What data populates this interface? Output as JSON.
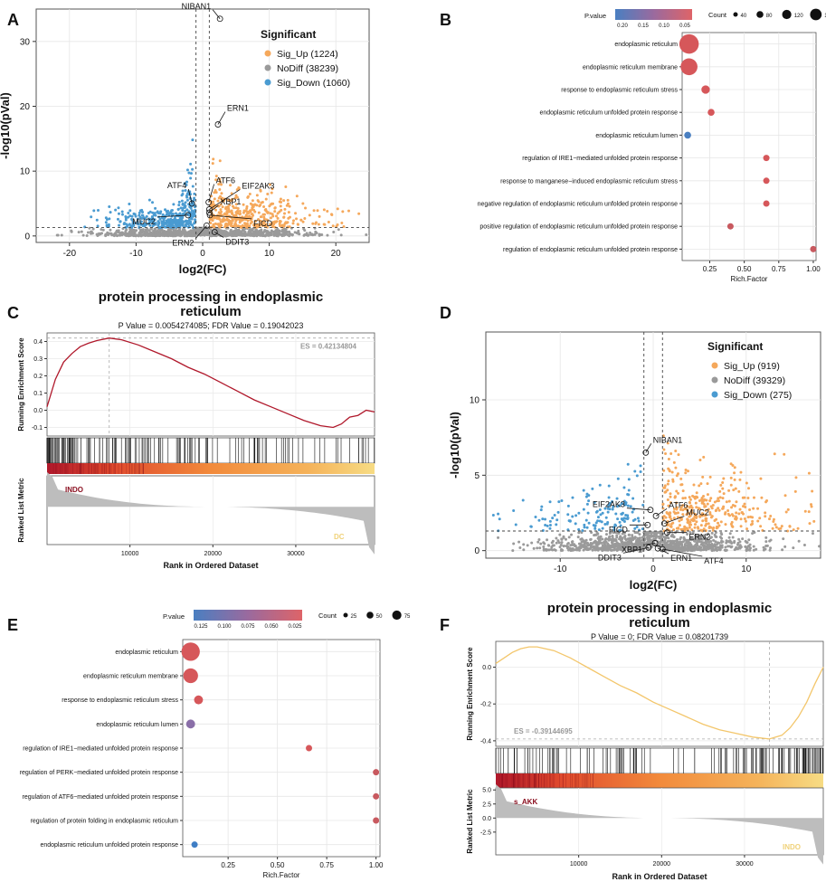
{
  "panels": {
    "A": {
      "letter": "A",
      "type": "volcano",
      "xlabel": "log2(FC)",
      "ylabel": "-log10(pVal)",
      "xlim": [
        -25,
        25
      ],
      "ylim": [
        -1,
        35
      ],
      "xticks": [
        -20,
        -10,
        0,
        10,
        20
      ],
      "yticks": [
        0,
        10,
        20,
        30
      ],
      "vlines": [
        -1,
        1
      ],
      "hline": 1.3,
      "legend": {
        "title": "Significant",
        "items": [
          {
            "label": "Sig_Up (1224)",
            "color": "#F5A85B"
          },
          {
            "label": "NoDiff (38239)",
            "color": "#9A9A9A"
          },
          {
            "label": "Sig_Down (1060)",
            "color": "#4A9BD1"
          }
        ]
      },
      "labels": [
        {
          "gene": "NIBAN1",
          "x": 2.6,
          "y": 33.5
        },
        {
          "gene": "ERN1",
          "x": 2.3,
          "y": 17.2
        },
        {
          "gene": "ATF6",
          "x": 0.9,
          "y": 5.2
        },
        {
          "gene": "EIF2AK3",
          "x": 1.0,
          "y": 4.1
        },
        {
          "gene": "ATF4",
          "x": -1.6,
          "y": 5.0
        },
        {
          "gene": "XBP1",
          "x": 1.0,
          "y": 3.6
        },
        {
          "gene": "MUC2",
          "x": -2.2,
          "y": 3.2
        },
        {
          "gene": "FICD",
          "x": 1.1,
          "y": 3.2
        },
        {
          "gene": "ERN2",
          "x": 0.6,
          "y": 1.6
        },
        {
          "gene": "DDIT3",
          "x": 1.8,
          "y": 0.6
        }
      ]
    },
    "B": {
      "letter": "B",
      "type": "dot",
      "xlabel": "Rich.Factor",
      "xlim": [
        0.05,
        1.02
      ],
      "xticks": [
        0.25,
        0.5,
        0.75,
        1.0
      ],
      "xtick_labels": [
        "0.25",
        "0.50",
        "0.75",
        "1.00"
      ],
      "pvalue_title": "P.value",
      "pvalue_ticks": [
        "0.20",
        "0.15",
        "0.10",
        "0.05"
      ],
      "count_title": "Count",
      "count_ticks": [
        "40",
        "80",
        "120",
        "160"
      ],
      "terms": [
        {
          "term": "endoplasmic reticulum",
          "rich": 0.1,
          "count": 160,
          "color": "#D6575A"
        },
        {
          "term": "endoplasmic reticulum membrane",
          "rich": 0.1,
          "count": 120,
          "color": "#D6575A"
        },
        {
          "term": "response to endoplasmic reticulum stress",
          "rich": 0.22,
          "count": 30,
          "color": "#D6575A"
        },
        {
          "term": "endoplasmic reticulum unfolded protein response",
          "rich": 0.26,
          "count": 20,
          "color": "#D6575A"
        },
        {
          "term": "endoplasmic reticulum lumen",
          "rich": 0.09,
          "count": 20,
          "color": "#4A7FC1"
        },
        {
          "term": "regulation of IRE1−mediated unfolded protein response",
          "rich": 0.66,
          "count": 4,
          "color": "#D6575A"
        },
        {
          "term": "response to manganese−induced endoplasmic reticulum stress",
          "rich": 0.66,
          "count": 4,
          "color": "#D6575A"
        },
        {
          "term": "negative regulation of endoplasmic reticulum unfolded protein response",
          "rich": 0.66,
          "count": 4,
          "color": "#D6575A"
        },
        {
          "term": "positive regulation of endoplasmic reticulum unfolded protein response",
          "rich": 0.4,
          "count": 4,
          "color": "#C8595F"
        },
        {
          "term": "regulation of endoplasmic reticulum unfolded protein response",
          "rich": 1.0,
          "count": 4,
          "color": "#C8595F"
        }
      ]
    },
    "C": {
      "letter": "C",
      "type": "gsea",
      "title": "protein processing in endoplasmic reticulum",
      "subtitle": "P Value = 0.0054274085; FDR Value = 0.19042023",
      "es_label": "ES = 0.42134804",
      "ylabel_top": "Running Enrichment Score",
      "ylabel_bottom": "Ranked List Metric",
      "xlabel": "Rank in Ordered Dataset",
      "xticks": [
        10000,
        20000,
        30000
      ],
      "yticks": [
        -0.1,
        0.0,
        0.1,
        0.2,
        0.3,
        0.4
      ],
      "ylim": [
        -0.15,
        0.45
      ],
      "line_color": "#B0182B",
      "curve": [
        [
          0,
          0.02
        ],
        [
          1000,
          0.18
        ],
        [
          2000,
          0.28
        ],
        [
          3000,
          0.33
        ],
        [
          4000,
          0.37
        ],
        [
          5000,
          0.39
        ],
        [
          6000,
          0.405
        ],
        [
          7500,
          0.42
        ],
        [
          9000,
          0.41
        ],
        [
          11000,
          0.38
        ],
        [
          13000,
          0.34
        ],
        [
          15000,
          0.3
        ],
        [
          17000,
          0.25
        ],
        [
          19000,
          0.21
        ],
        [
          21000,
          0.16
        ],
        [
          23000,
          0.11
        ],
        [
          25000,
          0.06
        ],
        [
          27000,
          0.02
        ],
        [
          29000,
          -0.02
        ],
        [
          31000,
          -0.06
        ],
        [
          33000,
          -0.09
        ],
        [
          34500,
          -0.1
        ],
        [
          35500,
          -0.08
        ],
        [
          36500,
          -0.04
        ],
        [
          37500,
          -0.03
        ],
        [
          38500,
          0.0
        ],
        [
          39500,
          -0.01
        ]
      ],
      "group_high": "INDO",
      "group_low": "DC",
      "xmax": 39500
    },
    "D": {
      "letter": "D",
      "type": "volcano",
      "xlabel": "log2(FC)",
      "ylabel": "-log10(pVal)",
      "xlim": [
        -18,
        18
      ],
      "ylim": [
        -0.5,
        14.5
      ],
      "xticks": [
        -10,
        0,
        10
      ],
      "yticks": [
        0,
        5,
        10
      ],
      "vlines": [
        -1,
        1
      ],
      "hline": 1.3,
      "legend": {
        "title": "Significant",
        "items": [
          {
            "label": "Sig_Up (919)",
            "color": "#F5A85B"
          },
          {
            "label": "NoDiff (39329)",
            "color": "#9A9A9A"
          },
          {
            "label": "Sig_Down (275)",
            "color": "#4A9BD1"
          }
        ]
      },
      "labels": [
        {
          "gene": "NIBAN1",
          "x": -0.8,
          "y": 6.5
        },
        {
          "gene": "EIF2AK3",
          "x": -0.3,
          "y": 2.7
        },
        {
          "gene": "ATF6",
          "x": 0.3,
          "y": 2.3
        },
        {
          "gene": "MUC2",
          "x": 1.2,
          "y": 1.8
        },
        {
          "gene": "FICD",
          "x": -0.6,
          "y": 1.7
        },
        {
          "gene": "ERN2",
          "x": 1.5,
          "y": 1.2
        },
        {
          "gene": "XBP1",
          "x": 0.2,
          "y": 0.5
        },
        {
          "gene": "DDIT3",
          "x": -0.5,
          "y": 0.2
        },
        {
          "gene": "ERN1",
          "x": 0.5,
          "y": 0.15
        },
        {
          "gene": "ATF4",
          "x": 1.0,
          "y": 0.1
        }
      ]
    },
    "E": {
      "letter": "E",
      "type": "dot",
      "xlabel": "Rich.Factor",
      "xlim": [
        0.02,
        1.02
      ],
      "xticks": [
        0.25,
        0.5,
        0.75,
        1.0
      ],
      "xtick_labels": [
        "0.25",
        "0.50",
        "0.75",
        "1.00"
      ],
      "pvalue_title": "P.value",
      "pvalue_ticks": [
        "0.125",
        "0.100",
        "0.075",
        "0.050",
        "0.025"
      ],
      "count_title": "Count",
      "count_ticks": [
        "25",
        "50",
        "75"
      ],
      "terms": [
        {
          "term": "endoplasmic reticulum",
          "rich": 0.06,
          "count": 85,
          "color": "#D6575A"
        },
        {
          "term": "endoplasmic reticulum membrane",
          "rich": 0.06,
          "count": 55,
          "color": "#D6575A"
        },
        {
          "term": "response to endoplasmic reticulum stress",
          "rich": 0.1,
          "count": 20,
          "color": "#D6575A"
        },
        {
          "term": "endoplasmic reticulum lumen",
          "rich": 0.06,
          "count": 20,
          "color": "#8A6FA8"
        },
        {
          "term": "regulation of IRE1−mediated unfolded protein response",
          "rich": 0.66,
          "count": 4,
          "color": "#D6575A"
        },
        {
          "term": "regulation of PERK−mediated unfolded protein response",
          "rich": 1.0,
          "count": 4,
          "color": "#C8595F"
        },
        {
          "term": "regulation of ATF6−mediated unfolded protein response",
          "rich": 1.0,
          "count": 4,
          "color": "#C8595F"
        },
        {
          "term": "regulation of protein folding in endoplasmic reticulum",
          "rich": 1.0,
          "count": 4,
          "color": "#C8595F"
        },
        {
          "term": "endoplasmic reticulum unfolded protein response",
          "rich": 0.08,
          "count": 8,
          "color": "#3F7EC5"
        }
      ]
    },
    "F": {
      "letter": "F",
      "type": "gsea",
      "title": "protein processing in endoplasmic reticulum",
      "subtitle": "P Value = 0; FDR Value = 0.08201739",
      "es_label": "ES = -0.39144695",
      "ylabel_top": "Running Enrichment Score",
      "ylabel_bottom": "Ranked List Metric",
      "xlabel": "Rank in Ordered Dataset",
      "xticks": [
        10000,
        20000,
        30000
      ],
      "yticks": [
        -0.4,
        -0.2,
        0.0
      ],
      "ylim": [
        -0.43,
        0.14
      ],
      "line_color": "#F3C66B",
      "curve": [
        [
          0,
          0.02
        ],
        [
          1000,
          0.05
        ],
        [
          2000,
          0.08
        ],
        [
          3000,
          0.1
        ],
        [
          4000,
          0.11
        ],
        [
          5000,
          0.11
        ],
        [
          7000,
          0.09
        ],
        [
          9000,
          0.05
        ],
        [
          11000,
          0.0
        ],
        [
          13000,
          -0.05
        ],
        [
          15000,
          -0.1
        ],
        [
          17000,
          -0.14
        ],
        [
          19000,
          -0.19
        ],
        [
          21000,
          -0.23
        ],
        [
          23000,
          -0.27
        ],
        [
          25000,
          -0.31
        ],
        [
          27000,
          -0.34
        ],
        [
          29000,
          -0.36
        ],
        [
          31000,
          -0.38
        ],
        [
          33000,
          -0.39
        ],
        [
          34500,
          -0.37
        ],
        [
          35500,
          -0.33
        ],
        [
          36500,
          -0.27
        ],
        [
          37500,
          -0.19
        ],
        [
          38500,
          -0.09
        ],
        [
          39500,
          0.0
        ]
      ],
      "rank_yticks": [
        "5.0",
        "2.5",
        "0.0",
        "-2.5"
      ],
      "group_high": "s_AKK",
      "group_low": "INDO",
      "xmax": 39500
    }
  }
}
